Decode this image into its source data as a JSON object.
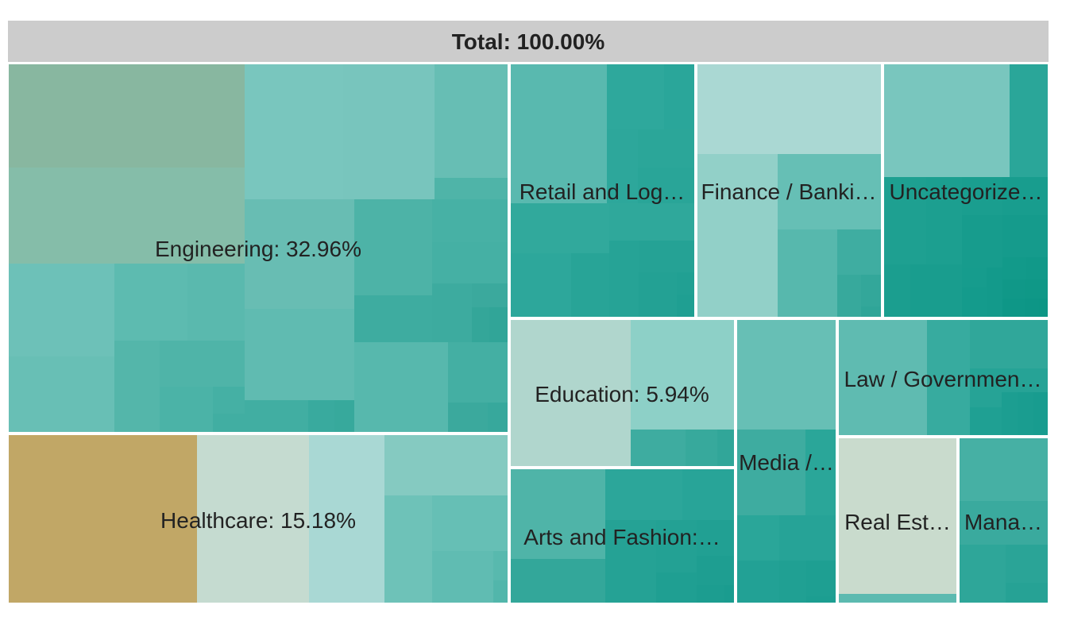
{
  "chart_data": {
    "type": "treemap",
    "title": "",
    "root": {
      "label": "Total",
      "value_text": "100.00%"
    },
    "categories": [
      {
        "key": "engineering",
        "label": "Engineering",
        "value_text": "32.96%",
        "display": "Engineering: 32.96%",
        "color": "#5fbdb3"
      },
      {
        "key": "healthcare",
        "label": "Healthcare",
        "value_text": "15.18%",
        "display": "Healthcare: 15.18%",
        "color": "#c1a766"
      },
      {
        "key": "retail",
        "label": "Retail and Log…",
        "value_text": "",
        "display": "Retail and Log…",
        "color": "#2ea89c"
      },
      {
        "key": "finance",
        "label": "Finance / Banki…",
        "value_text": "",
        "display": "Finance / Banki…",
        "color": "#92d0c8"
      },
      {
        "key": "uncategorized",
        "label": "Uncategorize…",
        "value_text": "",
        "display": "Uncategorize…",
        "color": "#17a293"
      },
      {
        "key": "education",
        "label": "Education",
        "value_text": "5.94%",
        "display": "Education: 5.94%",
        "color": "#b0d6cd"
      },
      {
        "key": "arts",
        "label": "Arts and Fashion:…",
        "value_text": "",
        "display": "Arts and Fashion:…",
        "color": "#23a395"
      },
      {
        "key": "media",
        "label": "Media /…",
        "value_text": "",
        "display": "Media /…",
        "color": "#31a89b"
      },
      {
        "key": "law",
        "label": "Law / Governmen…",
        "value_text": "",
        "display": "Law / Governmen…",
        "color": "#37ab9f"
      },
      {
        "key": "realestate",
        "label": "Real Est…",
        "value_text": "",
        "display": "Real Est…",
        "color": "#c9dbcd"
      },
      {
        "key": "management",
        "label": "Mana…",
        "value_text": "",
        "display": "Mana…",
        "color": "#33a99c"
      }
    ],
    "colors": {
      "header": "#cccccc",
      "border": "#ffffff",
      "text": "#222222"
    }
  }
}
